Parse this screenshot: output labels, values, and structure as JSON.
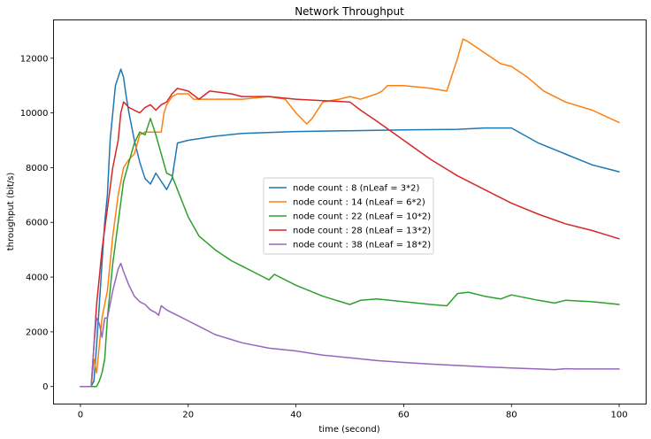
{
  "chart_data": {
    "type": "line",
    "title": "Network Throughput",
    "xlabel": "time (second)",
    "ylabel": "throughput (bit/s)",
    "xlim": [
      -5,
      105
    ],
    "ylim": [
      -640,
      13400
    ],
    "xticks": [
      0,
      20,
      40,
      60,
      80,
      100
    ],
    "yticks": [
      0,
      2000,
      4000,
      6000,
      8000,
      10000,
      12000
    ],
    "grid": false,
    "legend_position": "center",
    "series": [
      {
        "name": "node count : 8 (nLeaf = 3*2)",
        "color": "#1f77b4",
        "points": [
          [
            0,
            0
          ],
          [
            2,
            0
          ],
          [
            2.5,
            200
          ],
          [
            3,
            1500
          ],
          [
            3.5,
            3000
          ],
          [
            4,
            4500
          ],
          [
            4.5,
            6000
          ],
          [
            5,
            7000
          ],
          [
            5.5,
            9000
          ],
          [
            6,
            10000
          ],
          [
            6.5,
            11000
          ],
          [
            7,
            11300
          ],
          [
            7.5,
            11600
          ],
          [
            8,
            11300
          ],
          [
            8.5,
            10600
          ],
          [
            9,
            10000
          ],
          [
            10,
            9000
          ],
          [
            11,
            8200
          ],
          [
            12,
            7600
          ],
          [
            13,
            7400
          ],
          [
            14,
            7800
          ],
          [
            15,
            7500
          ],
          [
            16,
            7200
          ],
          [
            17,
            7600
          ],
          [
            18,
            8900
          ],
          [
            20,
            9000
          ],
          [
            25,
            9150
          ],
          [
            30,
            9250
          ],
          [
            40,
            9320
          ],
          [
            50,
            9350
          ],
          [
            60,
            9380
          ],
          [
            70,
            9400
          ],
          [
            75,
            9450
          ],
          [
            80,
            9450
          ],
          [
            85,
            8900
          ],
          [
            90,
            8500
          ],
          [
            95,
            8100
          ],
          [
            98,
            7950
          ],
          [
            100,
            7850
          ]
        ]
      },
      {
        "name": "node count : 14 (nLeaf = 6*2)",
        "color": "#ff7f0e",
        "points": [
          [
            0,
            0
          ],
          [
            2,
            0
          ],
          [
            2.5,
            1000
          ],
          [
            3,
            500
          ],
          [
            3.5,
            1500
          ],
          [
            4,
            2500
          ],
          [
            5,
            3500
          ],
          [
            6,
            5500
          ],
          [
            7,
            7000
          ],
          [
            8,
            8000
          ],
          [
            9,
            8300
          ],
          [
            10,
            8500
          ],
          [
            11,
            9200
          ],
          [
            12,
            9300
          ],
          [
            14,
            9300
          ],
          [
            15,
            9300
          ],
          [
            15.5,
            10000
          ],
          [
            16,
            10300
          ],
          [
            17,
            10600
          ],
          [
            18,
            10700
          ],
          [
            20,
            10700
          ],
          [
            21,
            10500
          ],
          [
            25,
            10500
          ],
          [
            30,
            10500
          ],
          [
            35,
            10600
          ],
          [
            38,
            10500
          ],
          [
            40,
            10000
          ],
          [
            42,
            9600
          ],
          [
            43,
            9800
          ],
          [
            45,
            10400
          ],
          [
            48,
            10500
          ],
          [
            50,
            10600
          ],
          [
            52,
            10500
          ],
          [
            55,
            10700
          ],
          [
            56,
            10800
          ],
          [
            57,
            11000
          ],
          [
            58,
            11000
          ],
          [
            60,
            11000
          ],
          [
            65,
            10900
          ],
          [
            68,
            10800
          ],
          [
            70,
            12000
          ],
          [
            71,
            12700
          ],
          [
            72,
            12600
          ],
          [
            75,
            12200
          ],
          [
            78,
            11800
          ],
          [
            80,
            11700
          ],
          [
            83,
            11300
          ],
          [
            86,
            10800
          ],
          [
            90,
            10400
          ],
          [
            95,
            10100
          ],
          [
            100,
            9650
          ]
        ]
      },
      {
        "name": "node count : 22 (nLeaf = 10*2)",
        "color": "#2ca02c",
        "points": [
          [
            0,
            0
          ],
          [
            3,
            0
          ],
          [
            3.5,
            200
          ],
          [
            4,
            500
          ],
          [
            4.5,
            1000
          ],
          [
            5,
            2500
          ],
          [
            6,
            4500
          ],
          [
            7,
            6000
          ],
          [
            8,
            7500
          ],
          [
            9,
            8200
          ],
          [
            10,
            8900
          ],
          [
            11,
            9300
          ],
          [
            12,
            9200
          ],
          [
            13,
            9800
          ],
          [
            14,
            9200
          ],
          [
            15,
            8500
          ],
          [
            16,
            7800
          ],
          [
            17,
            7700
          ],
          [
            18,
            7200
          ],
          [
            20,
            6200
          ],
          [
            22,
            5500
          ],
          [
            25,
            5000
          ],
          [
            28,
            4600
          ],
          [
            30,
            4400
          ],
          [
            33,
            4100
          ],
          [
            35,
            3900
          ],
          [
            36,
            4100
          ],
          [
            40,
            3700
          ],
          [
            45,
            3300
          ],
          [
            50,
            3000
          ],
          [
            52,
            3150
          ],
          [
            55,
            3200
          ],
          [
            60,
            3100
          ],
          [
            65,
            3000
          ],
          [
            68,
            2950
          ],
          [
            70,
            3400
          ],
          [
            72,
            3450
          ],
          [
            75,
            3300
          ],
          [
            78,
            3200
          ],
          [
            80,
            3350
          ],
          [
            85,
            3150
          ],
          [
            88,
            3050
          ],
          [
            90,
            3150
          ],
          [
            95,
            3100
          ],
          [
            100,
            3000
          ]
        ]
      },
      {
        "name": "node count : 28 (nLeaf = 13*2)",
        "color": "#d62728",
        "points": [
          [
            0,
            0
          ],
          [
            2,
            0
          ],
          [
            2.5,
            1500
          ],
          [
            3,
            3000
          ],
          [
            3.5,
            4000
          ],
          [
            4,
            5000
          ],
          [
            5,
            6500
          ],
          [
            6,
            8000
          ],
          [
            7,
            9000
          ],
          [
            7.5,
            10000
          ],
          [
            8,
            10400
          ],
          [
            9,
            10200
          ],
          [
            10,
            10100
          ],
          [
            11,
            10000
          ],
          [
            12,
            10200
          ],
          [
            13,
            10300
          ],
          [
            14,
            10100
          ],
          [
            15,
            10300
          ],
          [
            16,
            10400
          ],
          [
            17,
            10700
          ],
          [
            18,
            10900
          ],
          [
            20,
            10800
          ],
          [
            22,
            10500
          ],
          [
            24,
            10800
          ],
          [
            28,
            10700
          ],
          [
            30,
            10600
          ],
          [
            35,
            10600
          ],
          [
            40,
            10500
          ],
          [
            45,
            10450
          ],
          [
            50,
            10400
          ],
          [
            52,
            10100
          ],
          [
            55,
            9700
          ],
          [
            60,
            9000
          ],
          [
            65,
            8300
          ],
          [
            70,
            7700
          ],
          [
            75,
            7200
          ],
          [
            80,
            6700
          ],
          [
            85,
            6300
          ],
          [
            90,
            5950
          ],
          [
            95,
            5700
          ],
          [
            100,
            5400
          ]
        ]
      },
      {
        "name": "node count : 38 (nLeaf = 18*2)",
        "color": "#9467bd",
        "points": [
          [
            0,
            0
          ],
          [
            2,
            0
          ],
          [
            2.5,
            1500
          ],
          [
            3,
            2500
          ],
          [
            3.5,
            2300
          ],
          [
            4,
            1800
          ],
          [
            4.5,
            2500
          ],
          [
            5,
            2500
          ],
          [
            6,
            3500
          ],
          [
            7,
            4300
          ],
          [
            7.5,
            4500
          ],
          [
            8,
            4200
          ],
          [
            9,
            3700
          ],
          [
            10,
            3300
          ],
          [
            11,
            3100
          ],
          [
            12,
            3000
          ],
          [
            13,
            2800
          ],
          [
            14,
            2700
          ],
          [
            14.5,
            2600
          ],
          [
            15,
            2950
          ],
          [
            16,
            2800
          ],
          [
            17,
            2700
          ],
          [
            18,
            2600
          ],
          [
            20,
            2400
          ],
          [
            22,
            2200
          ],
          [
            25,
            1900
          ],
          [
            30,
            1600
          ],
          [
            35,
            1400
          ],
          [
            40,
            1300
          ],
          [
            45,
            1150
          ],
          [
            50,
            1050
          ],
          [
            55,
            950
          ],
          [
            60,
            880
          ],
          [
            65,
            820
          ],
          [
            70,
            770
          ],
          [
            75,
            720
          ],
          [
            80,
            680
          ],
          [
            85,
            640
          ],
          [
            88,
            620
          ],
          [
            90,
            650
          ],
          [
            92,
            640
          ],
          [
            95,
            640
          ],
          [
            100,
            640
          ]
        ]
      }
    ]
  }
}
